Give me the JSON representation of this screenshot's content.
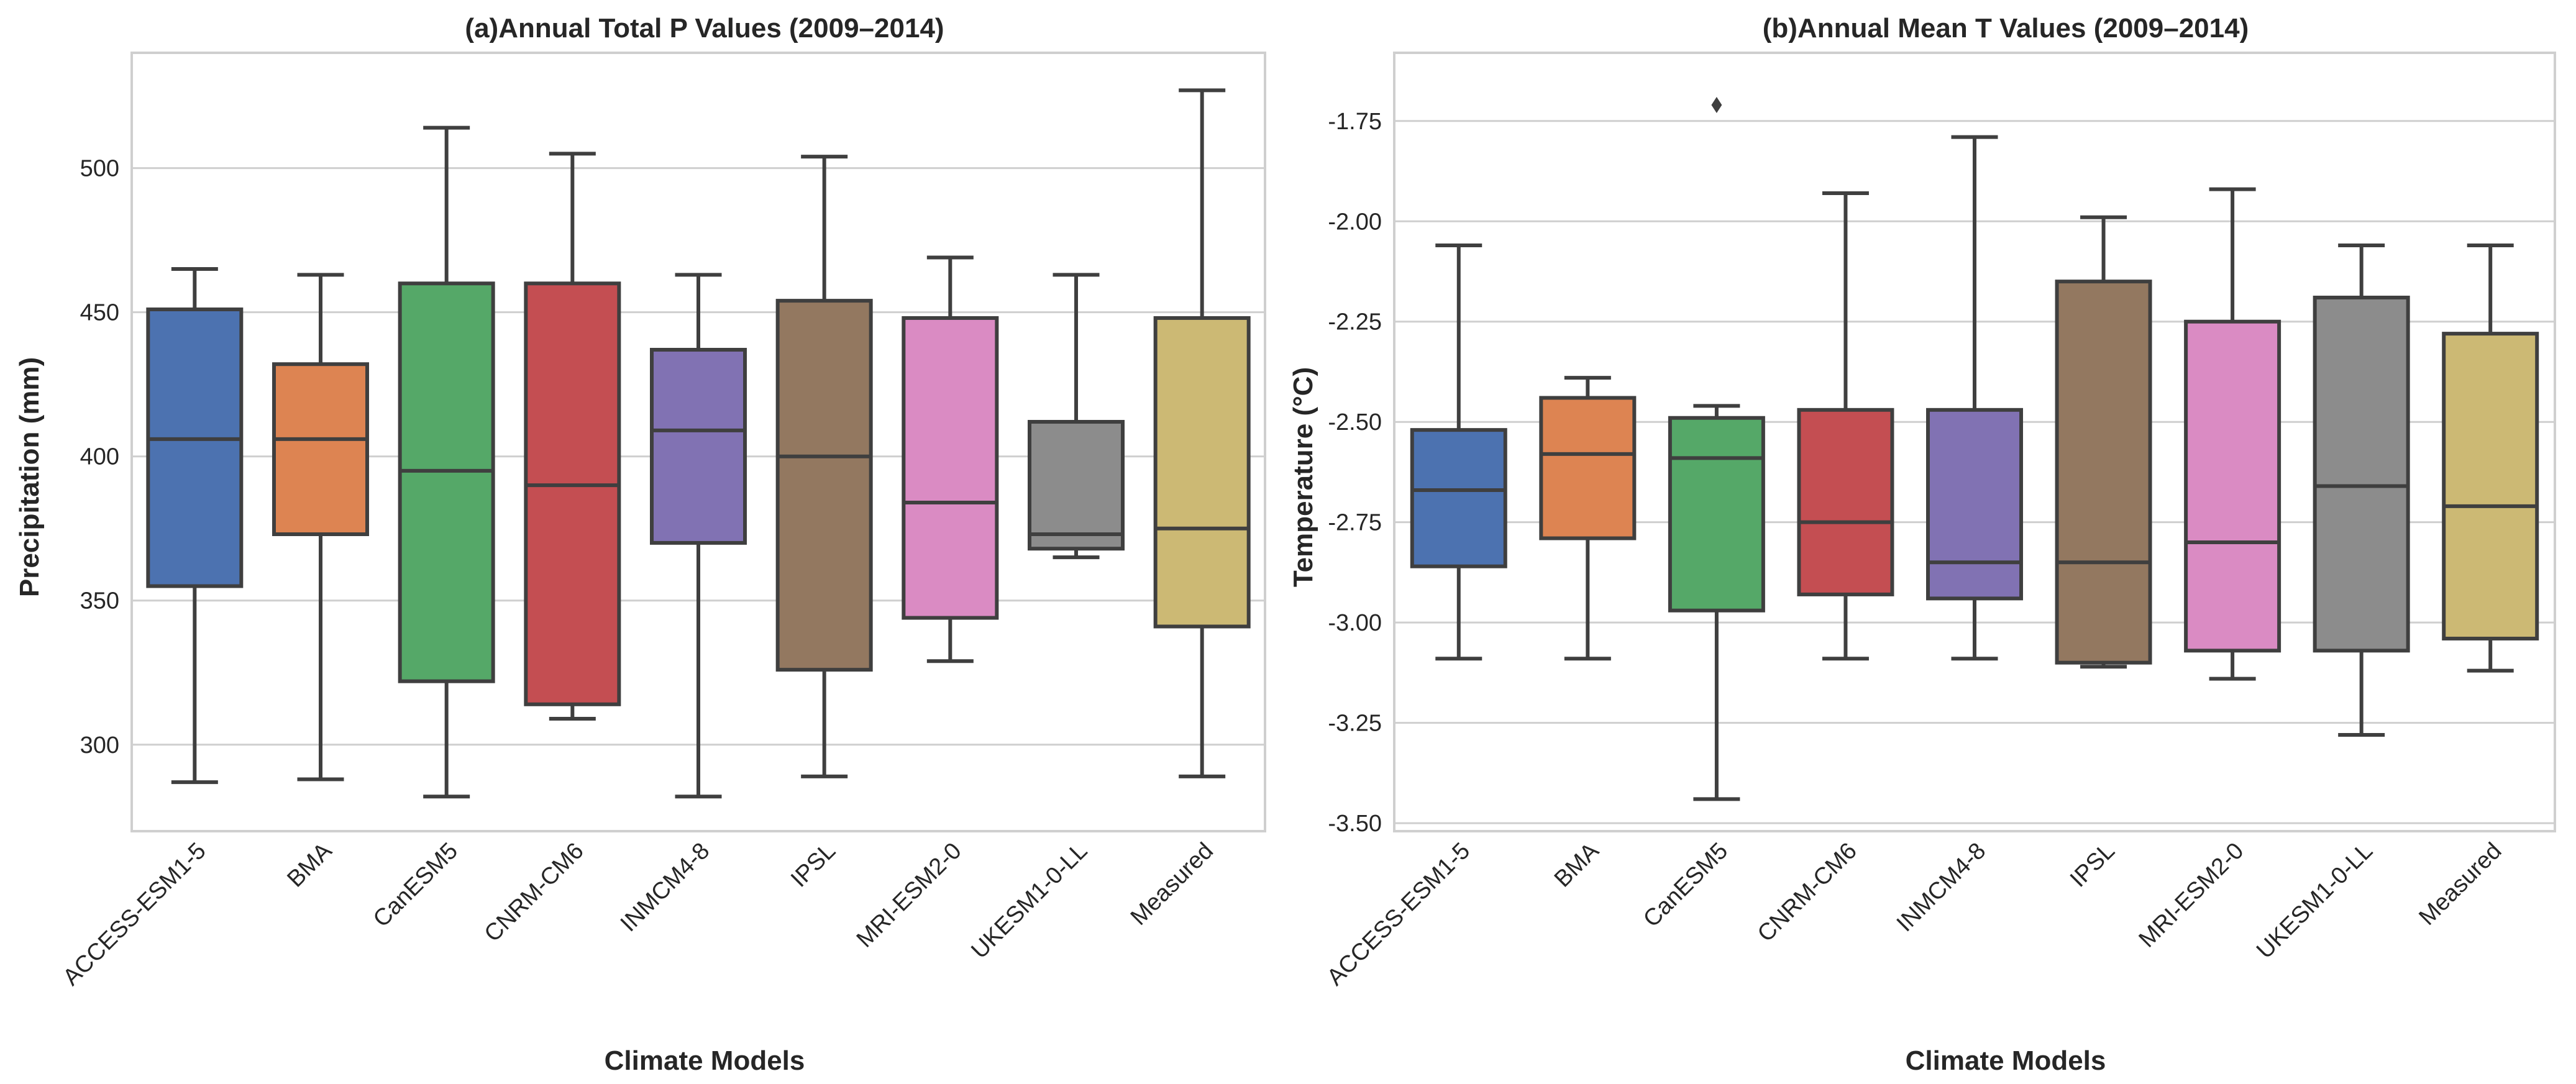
{
  "chart_data": [
    {
      "type": "box",
      "title": "(a)Annual Total P Values (2009–2014)",
      "xlabel": "Climate Models",
      "ylabel": "Precipitation (mm)",
      "ylim": [
        270,
        540
      ],
      "yticks": [
        300,
        350,
        400,
        450,
        500
      ],
      "ytick_labels": [
        "300",
        "350",
        "400",
        "450",
        "500"
      ],
      "grid": true,
      "categories": [
        "ACCESS-ESM1-5",
        "BMA",
        "CanESM5",
        "CNRM-CM6",
        "INMCM4-8",
        "IPSL",
        "MRI-ESM2-0",
        "UKESM1-0-LL",
        "Measured"
      ],
      "colors": [
        "#4c72b0",
        "#dd8452",
        "#55a868",
        "#c44e52",
        "#8172b3",
        "#937860",
        "#da8bc3",
        "#8c8c8c",
        "#ccb974"
      ],
      "boxes": [
        {
          "min": 287,
          "q1": 355,
          "median": 406,
          "q3": 451,
          "max": 465,
          "outliers": []
        },
        {
          "min": 288,
          "q1": 373,
          "median": 406,
          "q3": 432,
          "max": 463,
          "outliers": []
        },
        {
          "min": 282,
          "q1": 322,
          "median": 395,
          "q3": 460,
          "max": 514,
          "outliers": []
        },
        {
          "min": 309,
          "q1": 314,
          "median": 390,
          "q3": 460,
          "max": 505,
          "outliers": []
        },
        {
          "min": 282,
          "q1": 370,
          "median": 409,
          "q3": 437,
          "max": 463,
          "outliers": []
        },
        {
          "min": 289,
          "q1": 326,
          "median": 400,
          "q3": 454,
          "max": 504,
          "outliers": []
        },
        {
          "min": 329,
          "q1": 344,
          "median": 384,
          "q3": 448,
          "max": 469,
          "outliers": []
        },
        {
          "min": 365,
          "q1": 368,
          "median": 373,
          "q3": 412,
          "max": 463,
          "outliers": []
        },
        {
          "min": 289,
          "q1": 341,
          "median": 375,
          "q3": 448,
          "max": 527,
          "outliers": []
        }
      ]
    },
    {
      "type": "box",
      "title": "(b)Annual Mean T Values (2009–2014)",
      "xlabel": "Climate Models",
      "ylabel": "Temperature (°C)",
      "ylim": [
        -3.52,
        -1.58
      ],
      "yticks": [
        -3.5,
        -3.25,
        -3.0,
        -2.75,
        -2.5,
        -2.25,
        -2.0,
        -1.75
      ],
      "ytick_labels": [
        "-3.50",
        "-3.25",
        "-3.00",
        "-2.75",
        "-2.50",
        "-2.25",
        "-2.00",
        "-1.75"
      ],
      "grid": true,
      "categories": [
        "ACCESS-ESM1-5",
        "BMA",
        "CanESM5",
        "CNRM-CM6",
        "INMCM4-8",
        "IPSL",
        "MRI-ESM2-0",
        "UKESM1-0-LL",
        "Measured"
      ],
      "colors": [
        "#4c72b0",
        "#dd8452",
        "#55a868",
        "#c44e52",
        "#8172b3",
        "#937860",
        "#da8bc3",
        "#8c8c8c",
        "#ccb974"
      ],
      "boxes": [
        {
          "min": -3.09,
          "q1": -2.86,
          "median": -2.67,
          "q3": -2.52,
          "max": -2.06,
          "outliers": []
        },
        {
          "min": -3.09,
          "q1": -2.79,
          "median": -2.58,
          "q3": -2.44,
          "max": -2.39,
          "outliers": []
        },
        {
          "min": -3.44,
          "q1": -2.97,
          "median": -2.59,
          "q3": -2.49,
          "max": -2.46,
          "outliers": [
            -1.71
          ]
        },
        {
          "min": -3.09,
          "q1": -2.93,
          "median": -2.75,
          "q3": -2.47,
          "max": -1.93,
          "outliers": []
        },
        {
          "min": -3.09,
          "q1": -2.94,
          "median": -2.85,
          "q3": -2.47,
          "max": -1.79,
          "outliers": []
        },
        {
          "min": -3.11,
          "q1": -3.1,
          "median": -2.85,
          "q3": -2.15,
          "max": -1.99,
          "outliers": []
        },
        {
          "min": -3.14,
          "q1": -3.07,
          "median": -2.8,
          "q3": -2.25,
          "max": -1.92,
          "outliers": []
        },
        {
          "min": -3.28,
          "q1": -3.07,
          "median": -2.66,
          "q3": -2.19,
          "max": -2.06,
          "outliers": []
        },
        {
          "min": -3.12,
          "q1": -3.04,
          "median": -2.71,
          "q3": -2.28,
          "max": -2.06,
          "outliers": []
        }
      ]
    }
  ]
}
